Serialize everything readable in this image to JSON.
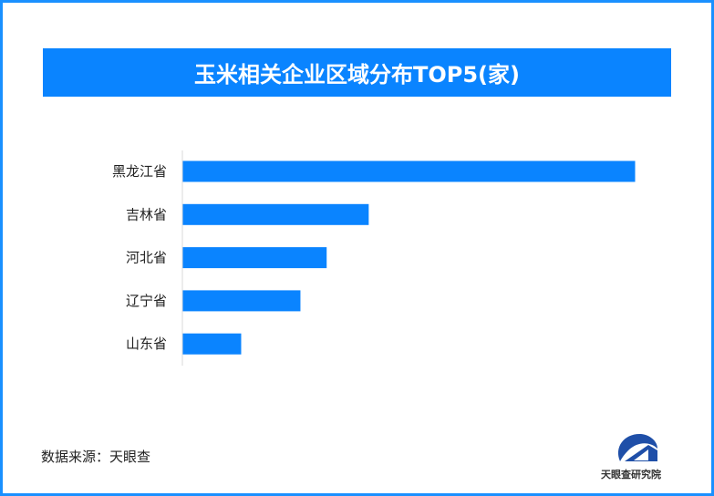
{
  "chart_data": {
    "type": "bar",
    "orientation": "horizontal",
    "title": "玉米相关企业区域分布TOP5(家)",
    "categories": [
      "黑龙江省",
      "吉林省",
      "河北省",
      "辽宁省",
      "山东省"
    ],
    "values": [
      100,
      41.1,
      31.8,
      26.0,
      12.9
    ],
    "value_note": "relative bar lengths; no axis values printed",
    "xlim": [
      0,
      100
    ],
    "grid": false,
    "bar_color": "#0a84ff"
  },
  "footer": {
    "source": "数据来源：天眼查",
    "logo_text": "天眼查研究院"
  },
  "colors": {
    "border": "#1a90ff",
    "title_bg": "#0a84ff",
    "logo_blue": "#1f4fa8"
  }
}
